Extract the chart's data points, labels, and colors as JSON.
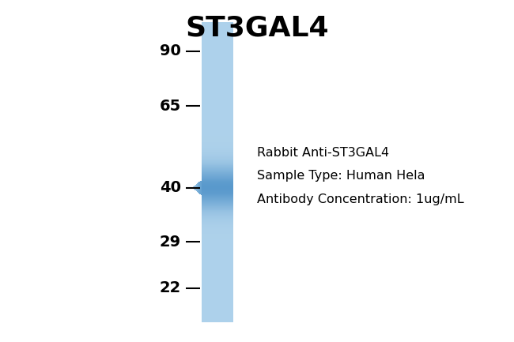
{
  "title": "ST3GAL4",
  "title_fontsize": 26,
  "title_fontweight": "bold",
  "background_color": "#ffffff",
  "mw_markers": [
    90,
    65,
    40,
    29,
    22
  ],
  "band_mw": 40,
  "annotation_lines": [
    "Rabbit Anti-ST3GAL4",
    "Sample Type: Human Hela",
    "Antibody Concentration: 1ug/mL"
  ],
  "annotation_fontsize": 11.5,
  "y_min": 19,
  "y_max": 115,
  "lane_base_color": [
    0.68,
    0.82,
    0.92
  ],
  "band_dark_color": [
    0.35,
    0.6,
    0.8
  ],
  "band_sigma_log": 0.09
}
